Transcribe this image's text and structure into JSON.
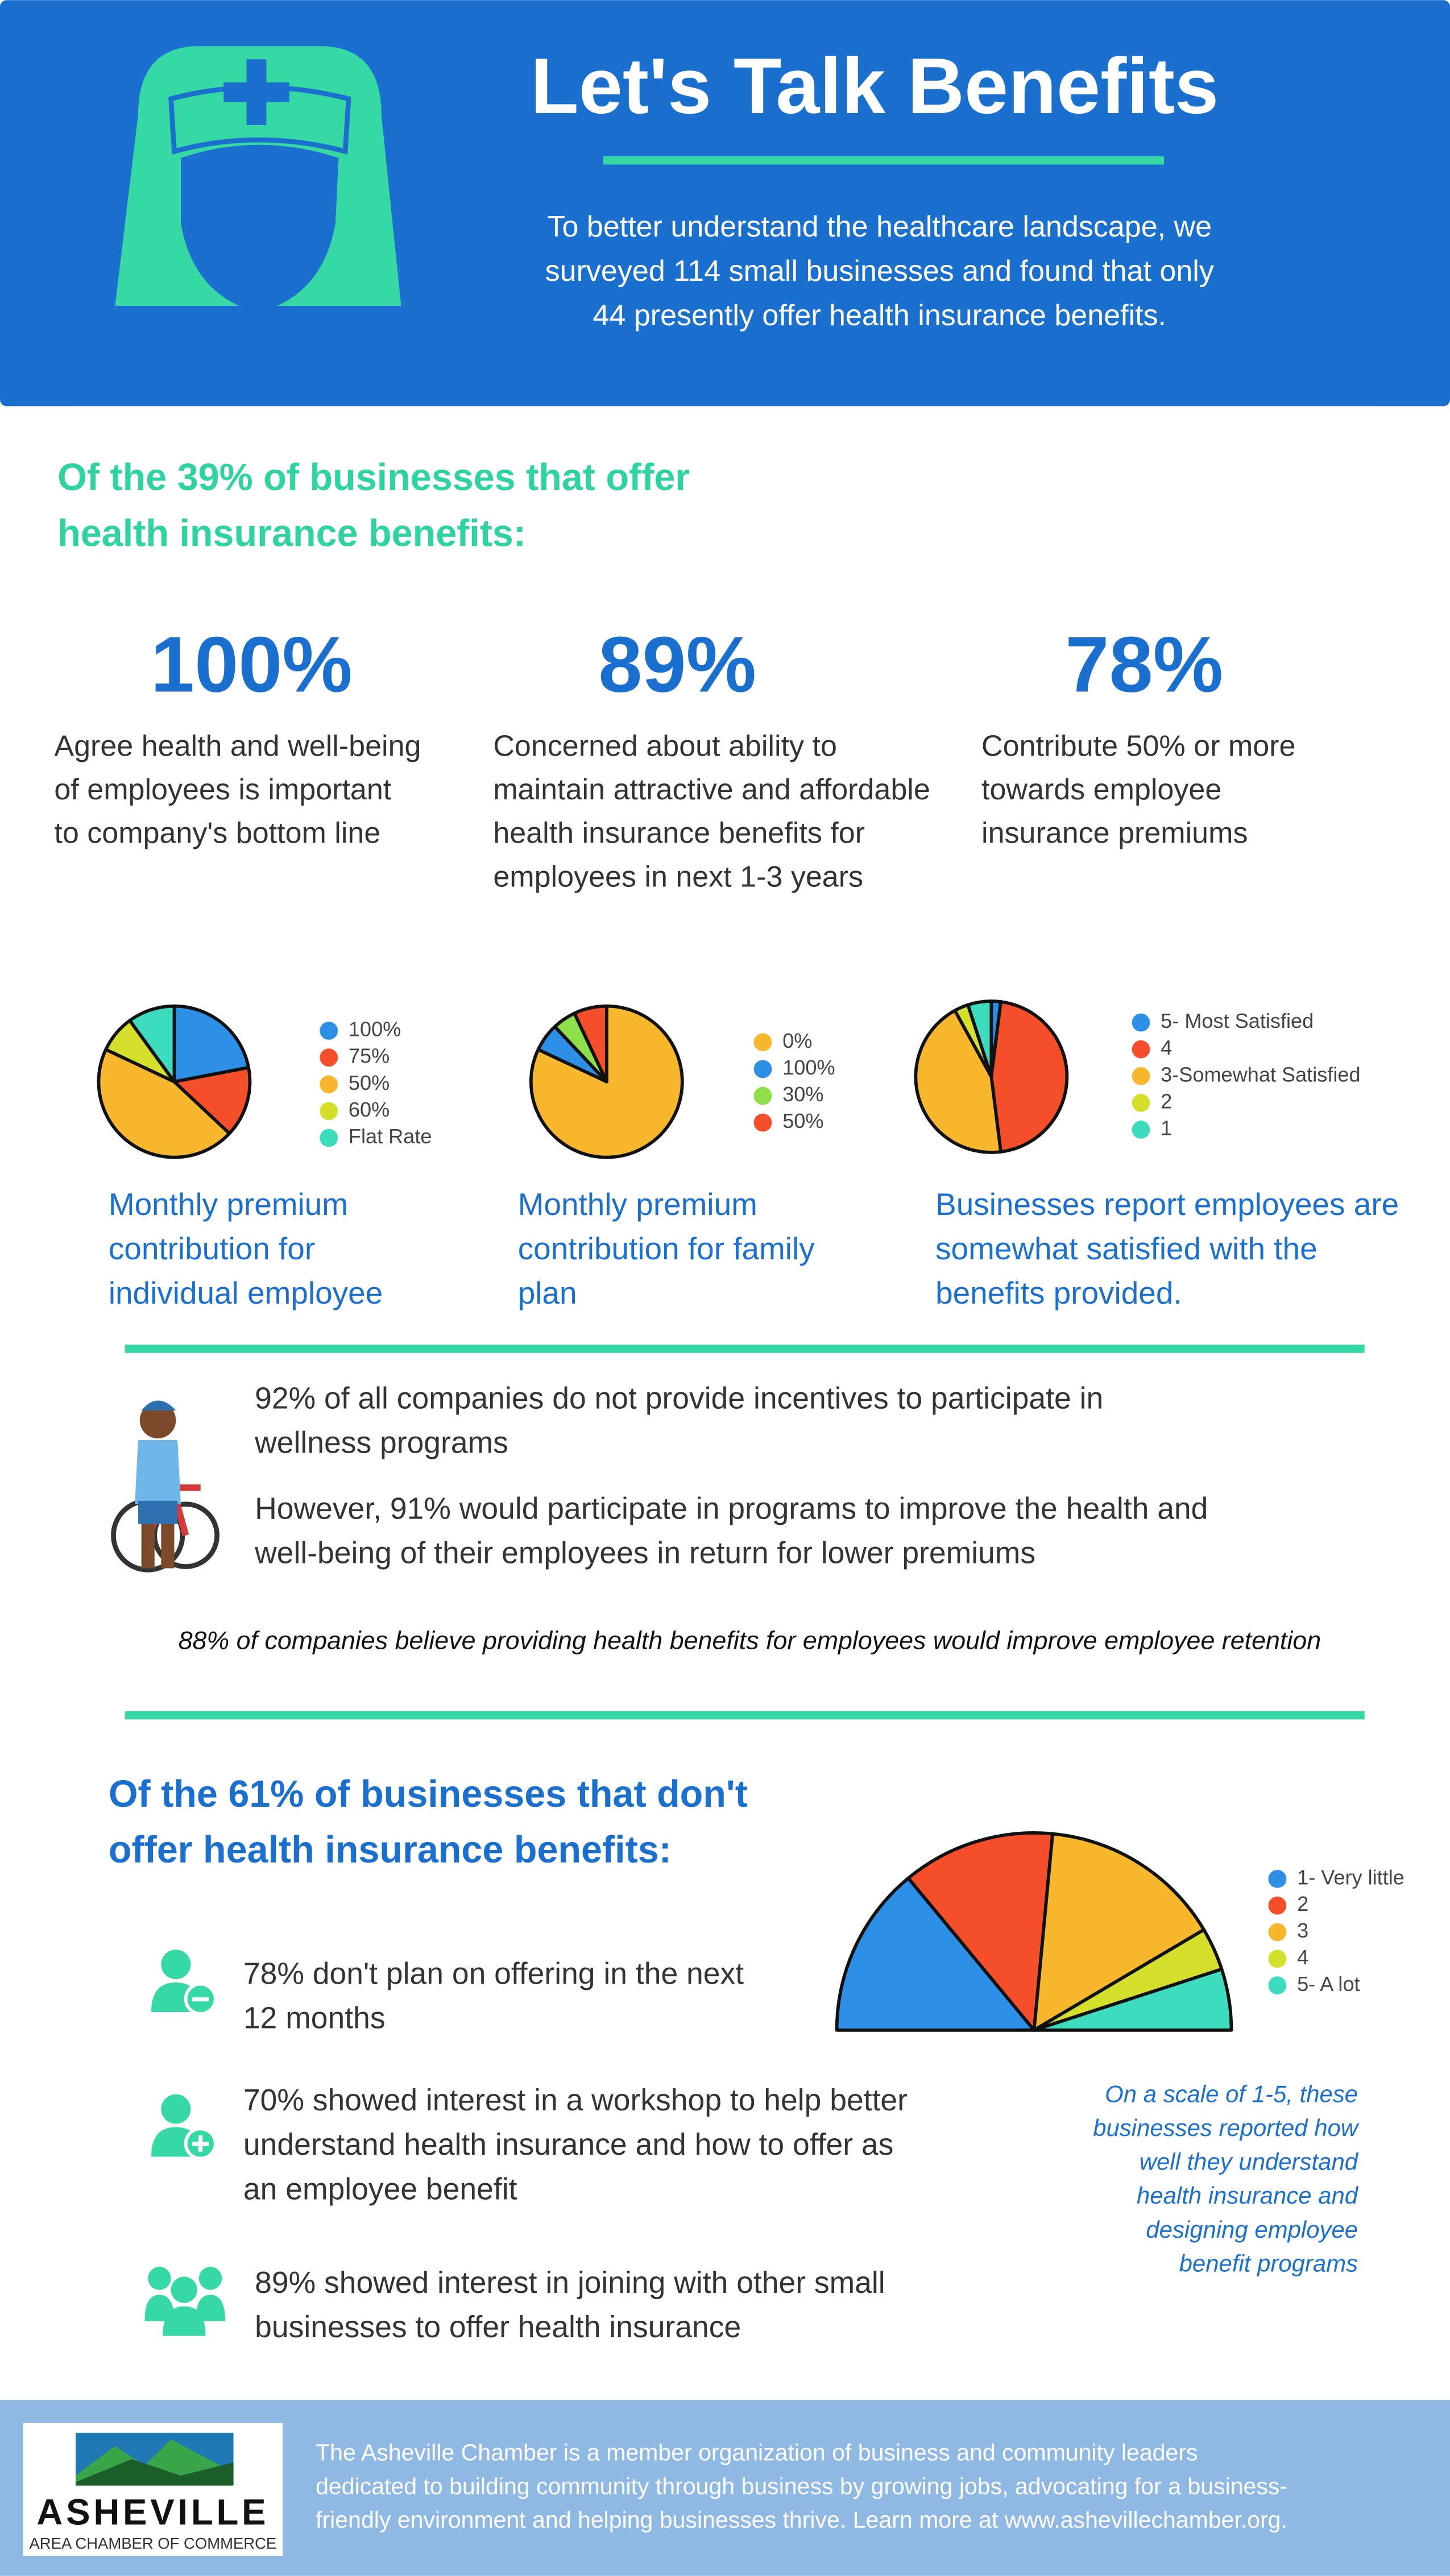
{
  "header": {
    "title": "Let's Talk Benefits",
    "intro": [
      "To better understand the healthcare landscape, we",
      "surveyed 114 small businesses and found that only",
      "44 presently offer health insurance benefits."
    ]
  },
  "offer_section": {
    "heading": [
      "Of the 39% of businesses that offer",
      "health insurance benefits:"
    ],
    "stats": [
      {
        "figure": "100%",
        "text": [
          "Agree health and well-being",
          "of employees is important",
          "to company's bottom line"
        ]
      },
      {
        "figure": "89%",
        "text": [
          "Concerned about ability to",
          "maintain attractive and affordable",
          "health insurance benefits for",
          "employees in next 1-3 years"
        ]
      },
      {
        "figure": "78%",
        "text": [
          "Contribute 50% or more",
          "towards employee",
          "insurance premiums"
        ]
      }
    ]
  },
  "charts": [
    {
      "type": "pie",
      "categories": [
        "100%",
        "75%",
        "50%",
        "60%",
        "Flat Rate"
      ],
      "colors": [
        "#2e8fe6",
        "#f44f2a",
        "#f7b82e",
        "#d4e02c",
        "#3ddcbf"
      ],
      "values": [
        22,
        15,
        45,
        8,
        10
      ],
      "caption": [
        "Monthly premium",
        "contribution for",
        "individual employee"
      ]
    },
    {
      "type": "pie",
      "categories": [
        "0%",
        "100%",
        "30%",
        "50%"
      ],
      "colors": [
        "#f7b82e",
        "#2e8fe6",
        "#8de04a",
        "#f44f2a"
      ],
      "values": [
        82,
        6,
        5,
        7
      ],
      "caption": [
        "Monthly premium",
        "contribution for family",
        "plan"
      ]
    },
    {
      "type": "pie",
      "categories": [
        "5- Most Satisfied",
        "4",
        "3-Somewhat Satisfied",
        "2",
        "1"
      ],
      "colors": [
        "#2e8fe6",
        "#f44f2a",
        "#f7b82e",
        "#d4e02c",
        "#3ddcbf"
      ],
      "values": [
        2,
        46,
        44,
        3,
        5
      ],
      "caption": [
        "Businesses report employees are",
        "somewhat satisfied with the",
        "benefits provided."
      ]
    }
  ],
  "wellness": {
    "points": [
      [
        "92% of all companies do not provide incentives to participate in",
        "wellness programs"
      ],
      [
        "However, 91% would participate in programs to improve the health and",
        "well-being of their employees in return for lower premiums"
      ]
    ],
    "retention": "88% of companies believe providing health benefits for employees would improve employee retention"
  },
  "no_offer_section": {
    "heading": [
      "Of the 61% of businesses that don't",
      "offer health insurance benefits:"
    ],
    "points": [
      [
        "78% don't plan on offering in the next",
        "12 months"
      ],
      [
        "70% showed interest in a workshop to help better",
        "understand health insurance and how to offer as",
        "an employee benefit"
      ],
      [
        "89% showed interest in joining with other small",
        "businesses to offer health insurance"
      ]
    ]
  },
  "understanding_chart": {
    "type": "semi-pie",
    "categories": [
      "1- Very little",
      "2",
      "3",
      "4",
      "5- A lot"
    ],
    "colors": [
      "#2e8fe6",
      "#f44f2a",
      "#f7b82e",
      "#d4e02c",
      "#3ddcbf"
    ],
    "values": [
      28,
      25,
      30,
      7,
      10
    ],
    "caption": [
      "On a scale of 1-5, these",
      "businesses reported how",
      "well they understand",
      "health insurance and",
      "designing employee",
      "benefit programs"
    ]
  },
  "footer": {
    "logo_name": "ASHEVILLE",
    "logo_sub": "AREA CHAMBER OF COMMERCE",
    "text": [
      "The Asheville Chamber is a member organization of business and community leaders",
      "dedicated to building community through business by growing jobs, advocating for a business-",
      "friendly environment and helping businesses thrive. Learn more at www.ashevillechamber.org."
    ]
  }
}
